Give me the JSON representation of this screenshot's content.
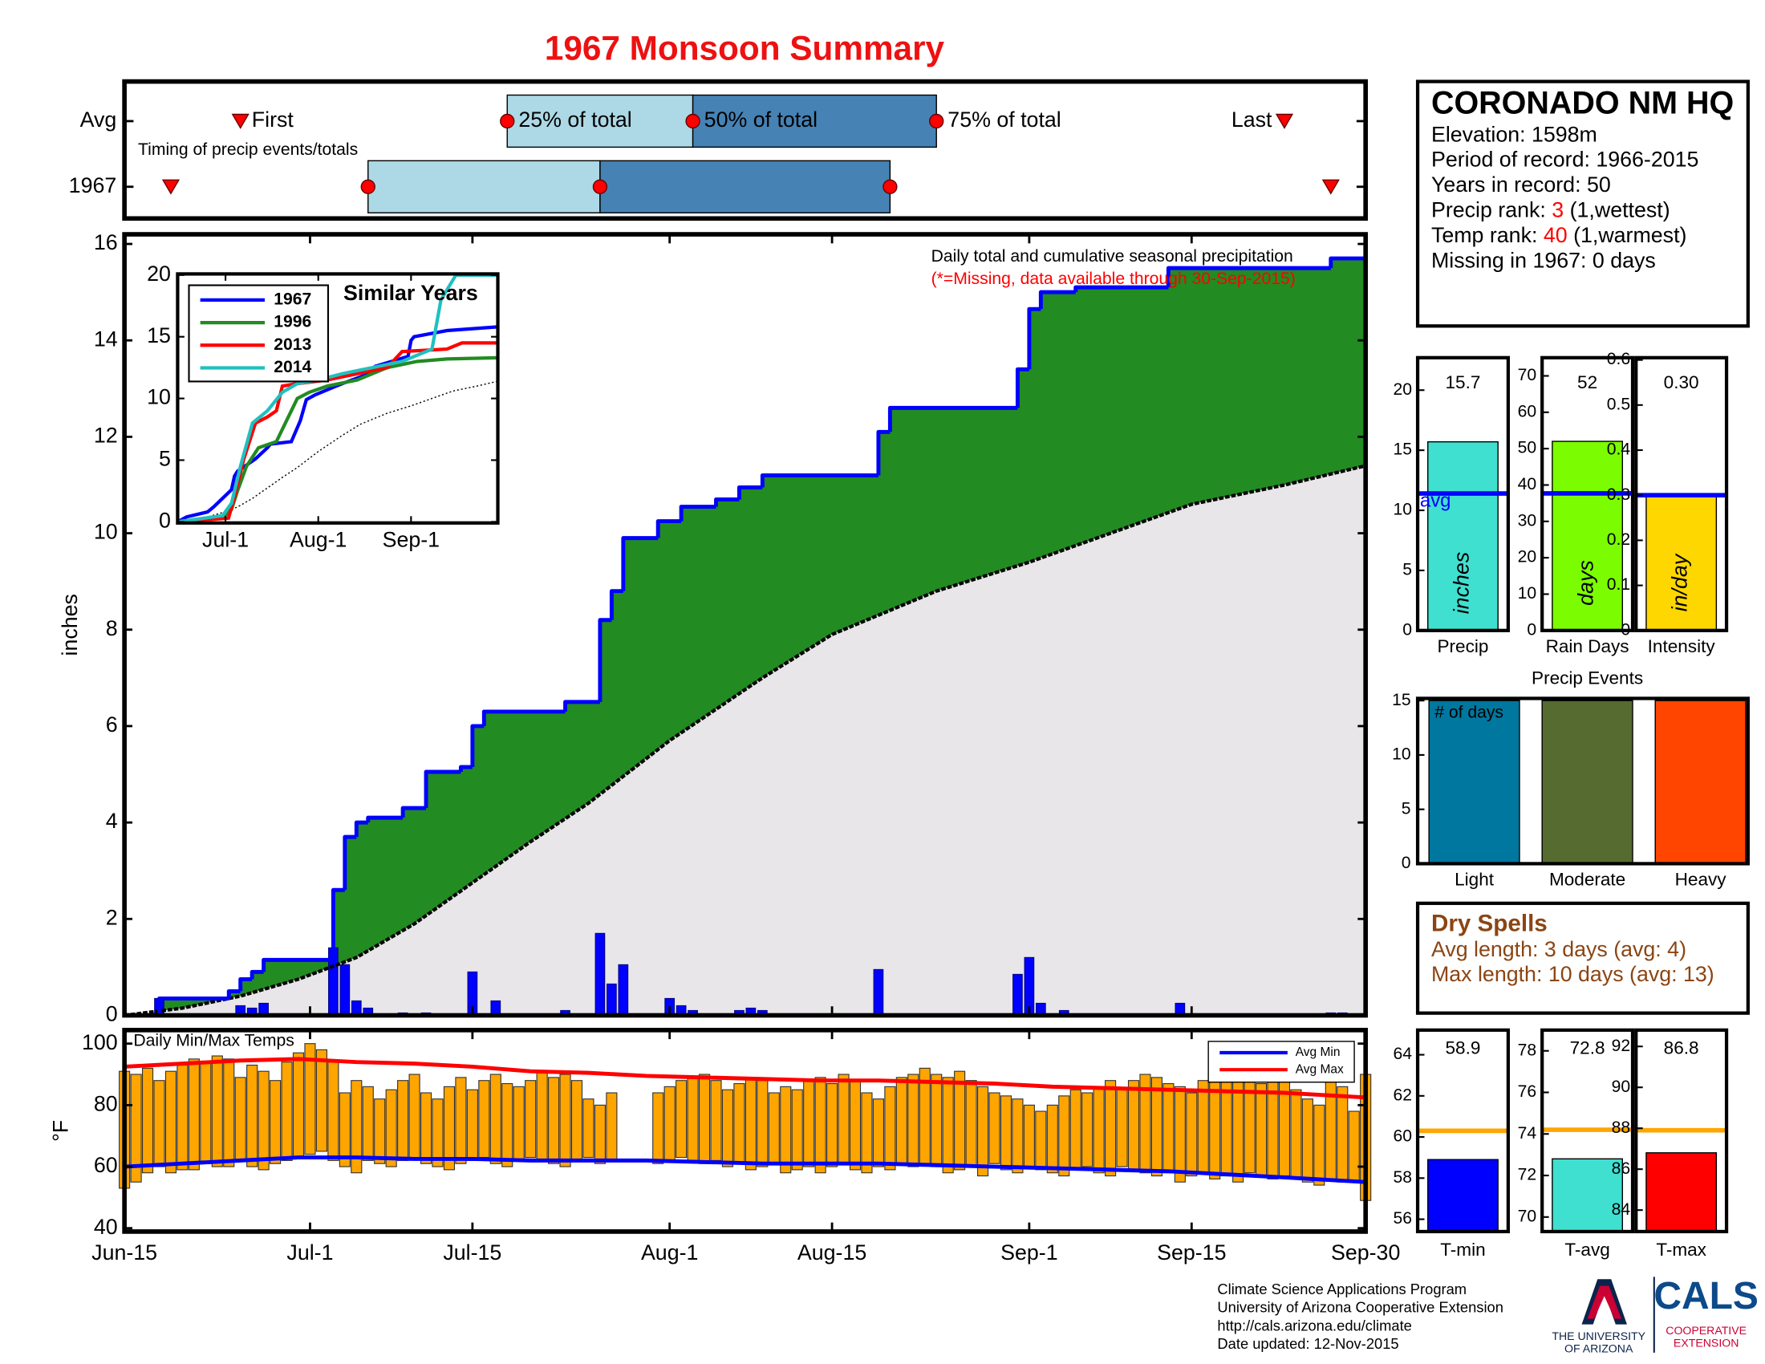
{
  "title": "1967 Monsoon Summary",
  "time_axis": {
    "xlim": [
      0,
      107
    ],
    "xticks": [
      {
        "value": 0,
        "label": "Jun-15"
      },
      {
        "value": 16,
        "label": "Jul-1"
      },
      {
        "value": 30,
        "label": "Jul-15"
      },
      {
        "value": 47,
        "label": "Aug-1"
      },
      {
        "value": 61,
        "label": "Aug-15"
      },
      {
        "value": 78,
        "label": "Sep-1"
      },
      {
        "value": 92,
        "label": "Sep-15"
      },
      {
        "value": 107,
        "label": "Sep-30"
      }
    ]
  },
  "chart_data": [
    {
      "type": "timeline",
      "subtitle": "Timing of precip events/totals",
      "labels": [
        "First",
        "25% of total",
        "50% of total",
        "75% of total",
        "Last"
      ],
      "series": [
        {
          "name": "Avg",
          "values": [
            10,
            33,
            49,
            70,
            100
          ]
        },
        {
          "name": "1967",
          "values": [
            4,
            21,
            41,
            66,
            104
          ]
        }
      ],
      "colors": [
        "#add8e6",
        "#4682b4"
      ],
      "marker_color": "#ff0000"
    },
    {
      "type": "precip",
      "annotation": "Daily total and cumulative seasonal precipitation",
      "note": "(*=Missing, data available through 30-Sep-2015)",
      "ylabel": "inches",
      "ylim": [
        0,
        16.2
      ],
      "yticks": [
        0,
        2,
        4,
        6,
        8,
        10,
        12,
        14,
        16
      ],
      "cumulative": {
        "x": [
          0,
          3,
          9,
          10,
          11,
          12,
          18,
          19,
          20,
          21,
          24,
          26,
          29,
          30,
          31,
          38,
          41,
          42,
          43,
          46,
          48,
          51,
          53,
          55,
          65,
          66,
          77,
          78,
          79,
          82,
          90,
          104
        ],
        "values": [
          0,
          0.35,
          0.5,
          0.75,
          0.9,
          1.15,
          2.6,
          3.7,
          4.0,
          4.1,
          4.3,
          5.05,
          5.15,
          6.0,
          6.3,
          6.5,
          8.2,
          8.8,
          9.9,
          10.25,
          10.55,
          10.7,
          10.95,
          11.2,
          12.1,
          12.6,
          13.4,
          14.65,
          15.0,
          15.1,
          15.5,
          15.7
        ],
        "color": "#0000ff",
        "fill": "#228b22"
      },
      "average": {
        "x": [
          0,
          5,
          10,
          15,
          20,
          25,
          30,
          35,
          40,
          47,
          55,
          61,
          70,
          78,
          85,
          92,
          100,
          107
        ],
        "values": [
          0,
          0.15,
          0.4,
          0.75,
          1.2,
          1.9,
          2.75,
          3.6,
          4.4,
          5.7,
          7.0,
          7.9,
          8.8,
          9.4,
          10.0,
          10.6,
          11.0,
          11.4
        ],
        "color": "#000000",
        "fill": "#e8e6e8"
      },
      "daily": {
        "x": [
          3,
          10,
          11,
          12,
          18,
          19,
          20,
          21,
          24,
          26,
          30,
          32,
          38,
          41,
          42,
          43,
          47,
          48,
          49,
          53,
          54,
          55,
          65,
          77,
          78,
          79,
          81,
          91,
          104,
          105
        ],
        "values": [
          0.35,
          0.2,
          0.15,
          0.25,
          1.4,
          1.05,
          0.3,
          0.15,
          0.05,
          0.05,
          0.9,
          0.3,
          0.1,
          1.7,
          0.65,
          1.05,
          0.35,
          0.2,
          0.1,
          0.1,
          0.15,
          0.1,
          0.95,
          0.85,
          1.2,
          0.25,
          0.1,
          0.25,
          0.05,
          0.05
        ],
        "color": "#0000ff"
      }
    },
    {
      "type": "inset",
      "title": "Similar Years",
      "ylim": [
        0,
        20
      ],
      "yticks": [
        0,
        5,
        10,
        15,
        20
      ],
      "xticks": [
        {
          "value": 16,
          "label": "Jul-1"
        },
        {
          "value": 47,
          "label": "Aug-1"
        },
        {
          "value": 78,
          "label": "Sep-1"
        }
      ],
      "series": [
        {
          "name": "1967",
          "color": "#0000ff",
          "x": [
            0,
            3,
            10,
            12,
            18,
            19,
            20,
            26,
            30,
            31,
            38,
            41,
            43,
            46,
            53,
            55,
            65,
            66,
            77,
            78,
            79,
            90,
            107
          ],
          "values": [
            0,
            0.4,
            0.8,
            1.2,
            2.6,
            3.7,
            4.1,
            5.1,
            6.0,
            6.3,
            6.5,
            8.2,
            9.9,
            10.3,
            11,
            11.2,
            12.1,
            12.6,
            13.4,
            14.7,
            15,
            15.5,
            15.8
          ]
        },
        {
          "name": "1996",
          "color": "#228b22",
          "x": [
            0,
            15,
            18,
            20,
            23,
            27,
            33,
            36,
            40,
            44,
            50,
            60,
            70,
            80,
            90,
            107
          ],
          "values": [
            0,
            0.3,
            1,
            2.5,
            4.5,
            6,
            6.5,
            8,
            10,
            10.5,
            11,
            11.5,
            12.5,
            13,
            13.2,
            13.3
          ]
        },
        {
          "name": "2013",
          "color": "#ff0000",
          "x": [
            0,
            17,
            19,
            22,
            26,
            30,
            33,
            35,
            40,
            50,
            60,
            70,
            75,
            90,
            95,
            107
          ],
          "values": [
            0,
            0.3,
            2,
            5,
            8,
            8.5,
            9,
            11,
            11.2,
            11.5,
            12,
            12.5,
            13.8,
            14,
            14.5,
            14.5
          ]
        },
        {
          "name": "2014",
          "color": "#20c0c0",
          "x": [
            0,
            15,
            18,
            21,
            25,
            30,
            35,
            40,
            47,
            55,
            65,
            75,
            80,
            85,
            88,
            93,
            107
          ],
          "values": [
            0,
            0.5,
            1.5,
            4.5,
            8,
            9,
            10.5,
            11.2,
            11.5,
            12,
            12.5,
            13,
            13.5,
            14,
            18,
            20,
            20
          ]
        }
      ]
    },
    {
      "type": "meter",
      "xlabel": "Precip",
      "values": [
        15.7
      ],
      "avg": 11.4,
      "avg_label": "avg",
      "unit": "inches",
      "ylim": [
        0,
        22.7
      ],
      "yticks": [
        0,
        5,
        10,
        15,
        20
      ],
      "color": "#40e0d0",
      "avg_color": "#0000ff"
    },
    {
      "type": "meter",
      "xlabel": "Rain Days",
      "values": [
        52
      ],
      "avg": 37.7,
      "unit": "days",
      "ylim": [
        0,
        75
      ],
      "yticks": [
        0,
        10,
        20,
        30,
        40,
        50,
        60,
        70
      ],
      "color": "#7cfc00",
      "avg_color": "#0000ff"
    },
    {
      "type": "meter",
      "xlabel": "Intensity",
      "values": [
        0.3
      ],
      "value_labels": [
        "0.30"
      ],
      "avg": 0.3,
      "unit": "in/day",
      "ylim": [
        0,
        0.605
      ],
      "yticks": [
        0,
        0.1,
        0.2,
        0.3,
        0.4,
        0.5,
        0.6
      ],
      "color": "#ffd700",
      "avg_color": "#0000ff"
    },
    {
      "type": "events",
      "title": "Precip Events",
      "annotation": "# of days",
      "categories": [
        "Light",
        "Moderate",
        "Heavy"
      ],
      "values": [
        15,
        15,
        15
      ],
      "colors": [
        "#00779e",
        "#556b2f",
        "#ff4500"
      ],
      "ylim": [
        0,
        15.2
      ],
      "yticks": [
        0,
        5,
        10,
        15
      ]
    },
    {
      "type": "meter",
      "xlabel": "T-min",
      "values": [
        58.9
      ],
      "avg": 60.3,
      "ylim": [
        55.4,
        65.2
      ],
      "yticks": [
        56,
        58,
        60,
        62,
        64
      ],
      "color": "#0000ff",
      "avg_color": "#ffa500"
    },
    {
      "type": "meter",
      "xlabel": "T-avg",
      "values": [
        72.8
      ],
      "avg": 74.2,
      "ylim": [
        69.3,
        79.0
      ],
      "yticks": [
        70,
        72,
        74,
        76,
        78
      ],
      "color": "#40e0d0",
      "avg_color": "#ffa500"
    },
    {
      "type": "meter",
      "xlabel": "T-max",
      "values": [
        86.8
      ],
      "avg": 87.9,
      "ylim": [
        82.95,
        92.8
      ],
      "yticks": [
        84,
        86,
        88,
        90,
        92
      ],
      "color": "#ff0000",
      "avg_color": "#ffa500"
    },
    {
      "type": "temps",
      "title": "Daily Min/Max Temps",
      "ylabel": "°F",
      "ylim": [
        38.9,
        104.4
      ],
      "yticks": [
        40,
        60,
        80,
        100
      ],
      "daily": {
        "color": "#ffa500",
        "x": [
          0,
          1,
          2,
          3,
          4,
          5,
          6,
          7,
          8,
          9,
          10,
          11,
          12,
          13,
          14,
          15,
          16,
          17,
          18,
          19,
          20,
          21,
          22,
          23,
          24,
          25,
          26,
          27,
          28,
          29,
          30,
          31,
          32,
          33,
          34,
          35,
          36,
          37,
          38,
          39,
          40,
          41,
          42,
          43,
          44,
          45,
          46,
          47,
          48,
          49,
          50,
          51,
          52,
          53,
          54,
          55,
          56,
          57,
          58,
          59,
          60,
          61,
          62,
          63,
          64,
          65,
          66,
          67,
          68,
          69,
          70,
          71,
          72,
          73,
          74,
          75,
          76,
          77,
          78,
          79,
          80,
          81,
          82,
          83,
          84,
          85,
          86,
          87,
          88,
          89,
          90,
          91,
          92,
          93,
          94,
          95,
          96,
          97,
          98,
          99,
          100,
          101,
          102,
          103,
          104,
          105,
          106,
          107
        ],
        "max": [
          91,
          90,
          92,
          88,
          91,
          93,
          95,
          94,
          96,
          95,
          89,
          93,
          91,
          88,
          94,
          97,
          100,
          98,
          94,
          84,
          88,
          86,
          82,
          85,
          88,
          90,
          84,
          82,
          86,
          89,
          85,
          88,
          90,
          87,
          86,
          88,
          91,
          89,
          90,
          88,
          82,
          80,
          84,
          null,
          null,
          null,
          84,
          86,
          88,
          89,
          90,
          88,
          85,
          87,
          89,
          88,
          84,
          86,
          85,
          88,
          89,
          87,
          90,
          88,
          84,
          82,
          86,
          89,
          90,
          92,
          90,
          89,
          91,
          88,
          86,
          84,
          83,
          82,
          80,
          78,
          80,
          83,
          85,
          84,
          86,
          88,
          85,
          88,
          90,
          89,
          87,
          86,
          84,
          88,
          89,
          90,
          88,
          89,
          87,
          90,
          88,
          85,
          82,
          80,
          88,
          86,
          78,
          90
        ],
        "min": [
          53,
          55,
          58,
          60,
          58,
          59,
          59,
          61,
          60,
          60,
          62,
          60,
          59,
          61,
          62,
          63,
          64,
          65,
          62,
          60,
          58,
          62,
          61,
          60,
          62,
          63,
          61,
          60,
          59,
          61,
          62,
          63,
          61,
          60,
          62,
          63,
          62,
          61,
          60,
          62,
          63,
          61,
          62,
          null,
          null,
          null,
          61,
          62,
          63,
          62,
          61,
          62,
          60,
          61,
          59,
          60,
          61,
          58,
          59,
          60,
          58,
          60,
          61,
          59,
          58,
          60,
          59,
          61,
          60,
          61,
          60,
          58,
          59,
          60,
          57,
          61,
          59,
          58,
          60,
          59,
          58,
          57,
          59,
          60,
          58,
          57,
          60,
          59,
          58,
          57,
          58,
          55,
          57,
          58,
          56,
          57,
          55,
          58,
          57,
          56,
          57,
          56,
          55,
          54,
          56,
          55,
          55,
          49
        ]
      },
      "avg_min": {
        "name": "Avg Min",
        "color": "#0000ff",
        "x": [
          0,
          5,
          10,
          15,
          20,
          25,
          30,
          35,
          40,
          45,
          50,
          55,
          60,
          65,
          70,
          75,
          80,
          85,
          90,
          95,
          100,
          107
        ],
        "values": [
          60,
          61,
          62,
          63,
          63,
          62.5,
          62.5,
          62,
          62,
          62,
          61.5,
          61,
          61,
          61,
          60.5,
          60,
          59.5,
          59,
          58.5,
          57.5,
          56.5,
          55
        ]
      },
      "avg_max": {
        "name": "Avg Max",
        "color": "#ff0000",
        "x": [
          0,
          5,
          10,
          15,
          20,
          25,
          30,
          35,
          40,
          45,
          50,
          55,
          60,
          65,
          70,
          75,
          80,
          85,
          90,
          95,
          100,
          107
        ],
        "values": [
          92.5,
          93.5,
          94.5,
          95,
          94,
          93.5,
          92.5,
          91,
          90.5,
          89.5,
          89,
          88.5,
          88,
          88,
          87.5,
          87,
          86,
          85.5,
          85,
          84.5,
          84,
          82.5
        ]
      }
    }
  ],
  "station": {
    "name": "CORONADO NM HQ",
    "lines": [
      [
        "Elevation: 1598m"
      ],
      [
        "Period of record: 1966-2015"
      ],
      [
        "Years in record: 50"
      ],
      [
        "Precip rank: ",
        "3",
        " (1,wettest)"
      ],
      [
        "Temp rank: ",
        "40",
        " (1,warmest)"
      ],
      [
        "Missing in 1967: 0 days"
      ]
    ]
  },
  "dry_spells": {
    "title": "Dry Spells",
    "lines": [
      "Avg length: 3 days (avg: 4)",
      "Max length: 10 days (avg: 13)"
    ]
  },
  "footer": {
    "lines": [
      "Climate Science Applications Program",
      "University of Arizona Cooperative Extension",
      "http://cals.arizona.edu/climate",
      " Date updated: 12-Nov-2015"
    ],
    "logo_left": [
      "THE UNIVERSITY",
      "OF ARIZONA"
    ],
    "logo_right": [
      "CALS",
      "COOPERATIVE",
      "EXTENSION"
    ]
  }
}
